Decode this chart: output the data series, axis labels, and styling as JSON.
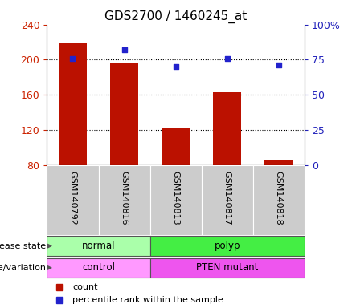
{
  "title": "GDS2700 / 1460245_at",
  "samples": [
    "GSM140792",
    "GSM140816",
    "GSM140813",
    "GSM140817",
    "GSM140818"
  ],
  "counts": [
    220,
    197,
    122,
    163,
    85
  ],
  "percentile_ranks": [
    76,
    82,
    70,
    76,
    71
  ],
  "ylim_left": [
    80,
    240
  ],
  "yticks_left": [
    80,
    120,
    160,
    200,
    240
  ],
  "ylim_right": [
    0,
    100
  ],
  "yticks_right": [
    0,
    25,
    50,
    75,
    100
  ],
  "disease_state": [
    {
      "label": "normal",
      "span": [
        0,
        2
      ],
      "color": "#AAFFAA"
    },
    {
      "label": "polyp",
      "span": [
        2,
        5
      ],
      "color": "#44EE44"
    }
  ],
  "genotype": [
    {
      "label": "control",
      "span": [
        0,
        2
      ],
      "color": "#FF99FF"
    },
    {
      "label": "PTEN mutant",
      "span": [
        2,
        5
      ],
      "color": "#EE55EE"
    }
  ],
  "bar_color": "#BB1100",
  "dot_color": "#2222CC",
  "axis_left_color": "#CC2200",
  "axis_right_color": "#2222BB",
  "legend_count_color": "#BB1100",
  "legend_pct_color": "#2222CC",
  "background_color": "#ffffff",
  "grid_color": "#000000",
  "sample_bg_color": "#CCCCCC",
  "sample_divider_color": "#888888"
}
